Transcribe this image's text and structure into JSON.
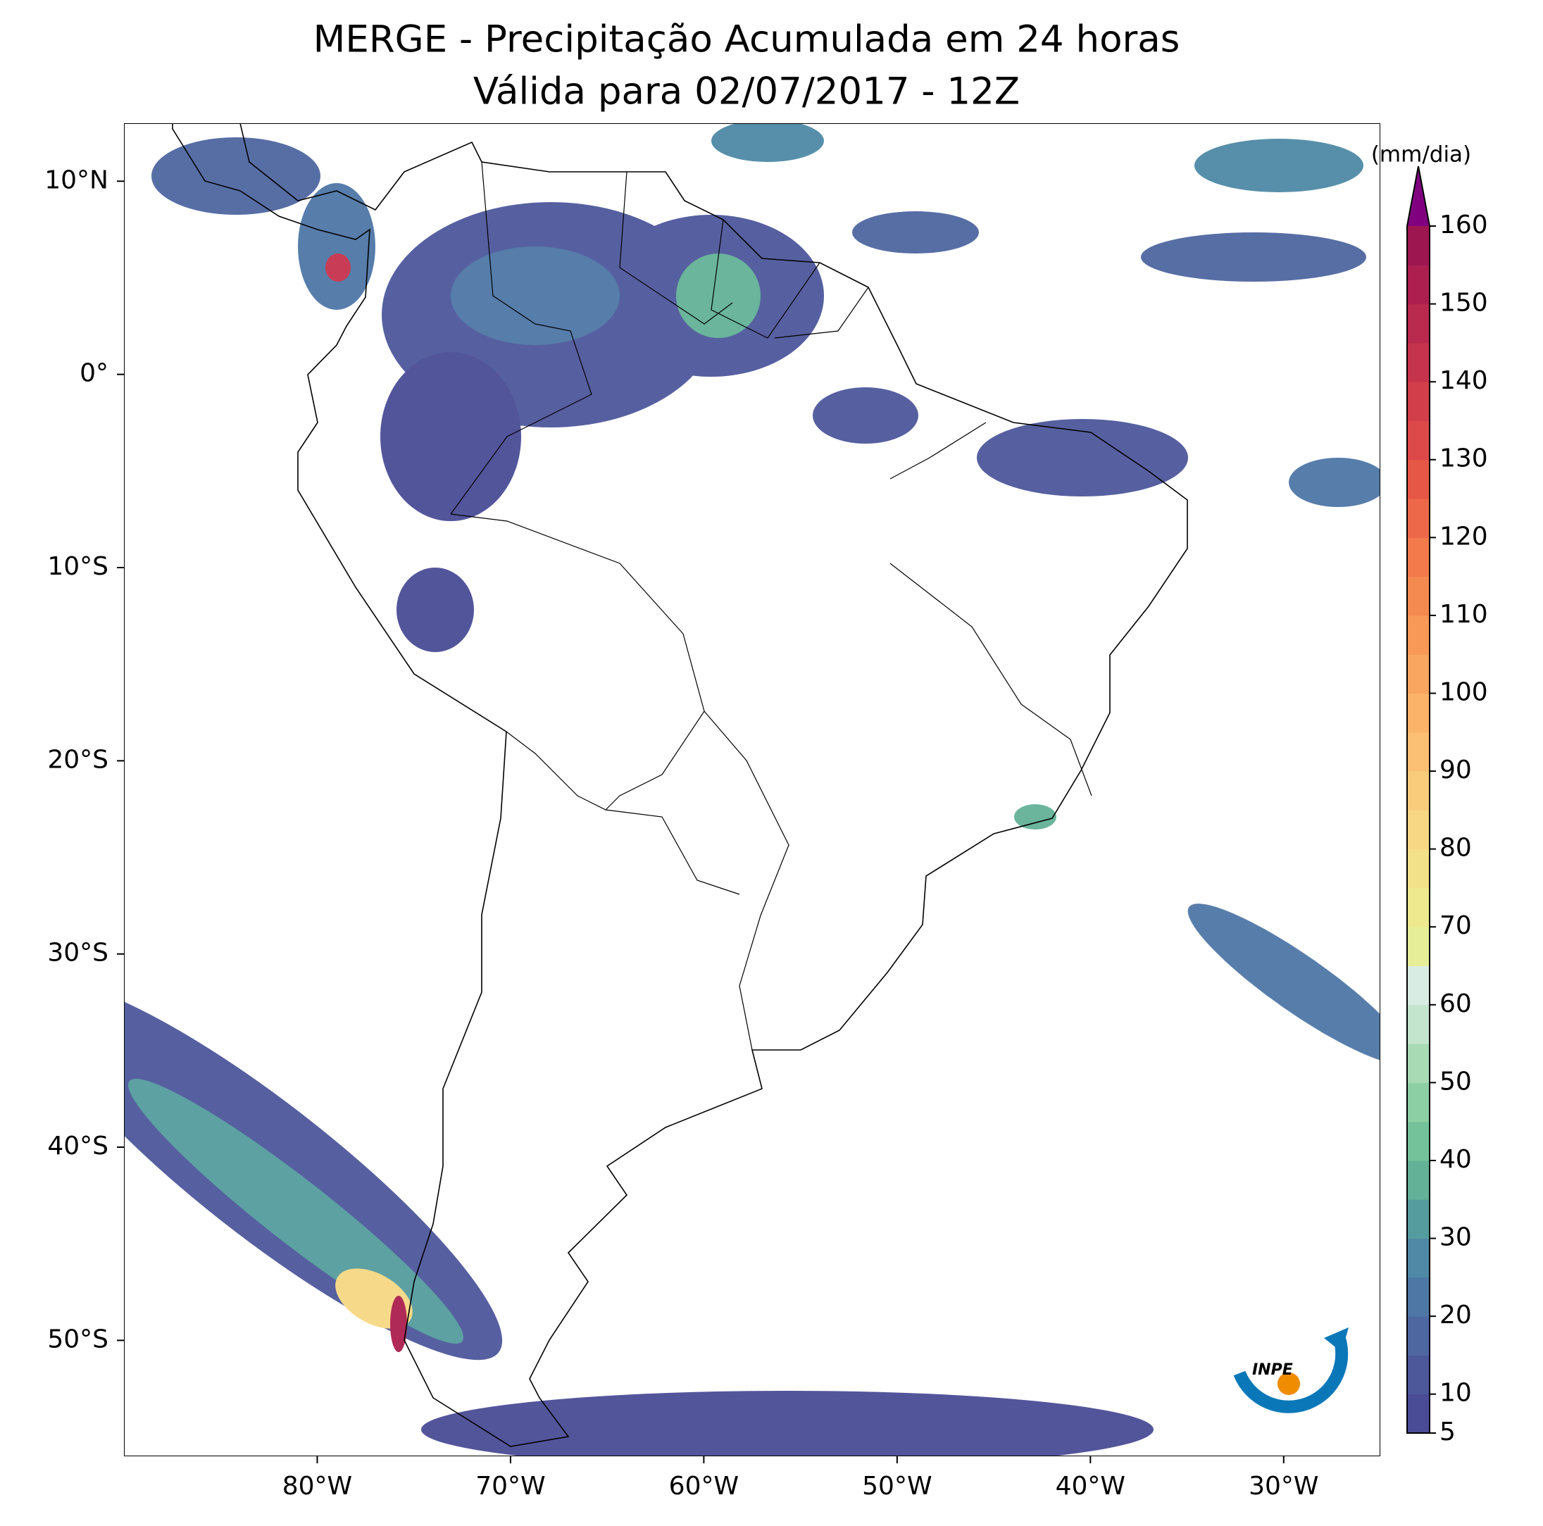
{
  "title": "MERGE - Precipitação Acumulada em 24 horas",
  "subtitle": "Válida para 02/07/2017 - 12Z",
  "map": {
    "xlim": [
      -90,
      -25
    ],
    "ylim": [
      -56,
      13
    ],
    "xticks": [
      {
        "value": -80,
        "label": "80°W"
      },
      {
        "value": -70,
        "label": "70°W"
      },
      {
        "value": -60,
        "label": "60°W"
      },
      {
        "value": -50,
        "label": "50°W"
      },
      {
        "value": -40,
        "label": "40°W"
      },
      {
        "value": -30,
        "label": "30°W"
      }
    ],
    "yticks": [
      {
        "value": 10,
        "label": "10°N"
      },
      {
        "value": 0,
        "label": "0°"
      },
      {
        "value": -10,
        "label": "10°S"
      },
      {
        "value": -20,
        "label": "20°S"
      },
      {
        "value": -30,
        "label": "30°S"
      },
      {
        "value": -40,
        "label": "40°S"
      },
      {
        "value": -50,
        "label": "50°S"
      }
    ]
  },
  "colorbar": {
    "label": "(mm/dia)",
    "lim": [
      5,
      160
    ],
    "ticks": [
      5,
      10,
      20,
      30,
      40,
      50,
      60,
      70,
      80,
      90,
      100,
      110,
      120,
      130,
      140,
      150,
      160
    ],
    "colors": [
      "#4a4c96",
      "#4d589b",
      "#4f67a1",
      "#4f77a6",
      "#4f89a6",
      "#559c9f",
      "#63b197",
      "#74c29a",
      "#8dcfa4",
      "#a8dab4",
      "#c3e4cd",
      "#d9ece4",
      "#e6ef98",
      "#eee98f",
      "#f3e189",
      "#f7d784",
      "#f9cc7c",
      "#fbc073",
      "#fbb369",
      "#f9a660",
      "#f89958",
      "#f58a50",
      "#f27a4b",
      "#ed6848",
      "#e75746",
      "#dd4948",
      "#d23e4a",
      "#c6334c",
      "#ba294e",
      "#ac1f4f",
      "#9d1650"
    ],
    "extend_color": "#800080"
  },
  "logo": {
    "text": "INPE"
  }
}
